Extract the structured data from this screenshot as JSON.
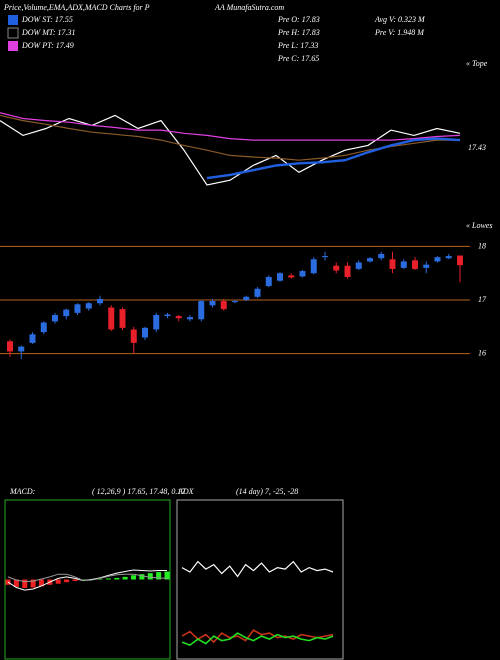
{
  "header": {
    "title": "Price,Volume,EMA,ADX,MACD Charts for P",
    "site": "AA MunafaSutra.com",
    "stats_left": [
      "Pre O: 17.83",
      "Pre H: 17.83",
      "Pre L: 17.33",
      "Pre C: 17.65"
    ],
    "stats_right": [
      "Avg V: 0.323 M",
      "Pre V: 1.948 M"
    ]
  },
  "chart_data": [
    {
      "type": "line",
      "note": "« Tope",
      "ylim": [
        16.35,
        19.1
      ],
      "end_label": 17.43,
      "series": [
        {
          "color": "#ffffff",
          "values": [
            17.95,
            17.67,
            17.8,
            17.99,
            17.86,
            18.05,
            17.8,
            17.95,
            17.39,
            16.73,
            16.82,
            17.1,
            17.29,
            16.97,
            17.2,
            17.39,
            17.48,
            17.77,
            17.67,
            17.8,
            17.71
          ]
        },
        {
          "name": "DOW MT: 17.31",
          "color": "#8a5a2a",
          "values": [
            18.05,
            17.95,
            17.88,
            17.8,
            17.73,
            17.69,
            17.65,
            17.58,
            17.48,
            17.39,
            17.29,
            17.26,
            17.24,
            17.2,
            17.24,
            17.29,
            17.39,
            17.46,
            17.52,
            17.58,
            17.58
          ]
        },
        {
          "name": "DOW PT: 17.49",
          "color": "#e040e0",
          "values": [
            18.1,
            17.99,
            17.95,
            17.92,
            17.86,
            17.82,
            17.77,
            17.77,
            17.71,
            17.67,
            17.61,
            17.58,
            17.58,
            17.58,
            17.58,
            17.58,
            17.58,
            17.58,
            17.61,
            17.65,
            17.67
          ]
        },
        {
          "name": "DOW ST: 17.55",
          "color": "#2060e0",
          "values": [
            null,
            null,
            null,
            null,
            null,
            null,
            null,
            null,
            null,
            16.86,
            16.92,
            17.01,
            17.1,
            17.14,
            17.16,
            17.2,
            17.35,
            17.48,
            17.58,
            17.61,
            17.58
          ]
        }
      ]
    },
    {
      "type": "candlestick",
      "note": "« Lowes",
      "ylim": [
        15.6,
        18.4
      ],
      "yticks": [
        16,
        17,
        18
      ],
      "grid": true,
      "grid_color": "#b4641e",
      "up_color": "#2b6de0",
      "down_color": "#e8202a",
      "open": [
        16.23,
        16.04,
        16.2,
        16.4,
        16.6,
        16.7,
        16.76,
        16.84,
        16.94,
        16.86,
        16.83,
        16.45,
        16.3,
        16.45,
        16.7,
        16.7,
        16.64,
        16.64,
        16.9,
        16.98,
        16.96,
        17.0,
        17.06,
        17.26,
        17.36,
        17.46,
        17.44,
        17.5,
        17.8,
        17.64,
        17.64,
        17.58,
        17.72,
        17.78,
        17.76,
        17.6,
        17.74,
        17.6,
        17.72,
        17.78,
        17.83
      ],
      "high": [
        16.26,
        16.15,
        16.4,
        16.6,
        16.76,
        16.84,
        16.94,
        16.96,
        17.08,
        16.9,
        16.86,
        16.5,
        16.5,
        16.76,
        16.76,
        16.72,
        16.72,
        17.0,
        17.02,
        17.02,
        17.0,
        17.08,
        17.24,
        17.46,
        17.52,
        17.5,
        17.56,
        17.8,
        17.9,
        17.7,
        17.7,
        17.74,
        17.8,
        17.9,
        17.9,
        17.76,
        17.8,
        17.72,
        17.82,
        17.86,
        17.83
      ],
      "low": [
        15.94,
        15.9,
        16.18,
        16.36,
        16.56,
        16.64,
        16.72,
        16.8,
        16.9,
        16.42,
        16.44,
        16.0,
        16.25,
        16.4,
        16.66,
        16.6,
        16.6,
        16.6,
        16.86,
        16.8,
        16.94,
        16.98,
        17.04,
        17.24,
        17.34,
        17.4,
        17.42,
        17.48,
        17.74,
        17.5,
        17.4,
        17.56,
        17.7,
        17.74,
        17.5,
        17.58,
        17.56,
        17.5,
        17.7,
        17.76,
        17.33
      ],
      "close": [
        16.04,
        16.13,
        16.36,
        16.58,
        16.72,
        16.82,
        16.92,
        16.94,
        17.02,
        16.45,
        16.48,
        16.2,
        16.48,
        16.72,
        16.73,
        16.66,
        16.68,
        16.98,
        16.98,
        16.83,
        16.98,
        17.06,
        17.21,
        17.43,
        17.5,
        17.42,
        17.54,
        17.76,
        17.82,
        17.55,
        17.43,
        17.7,
        17.78,
        17.86,
        17.58,
        17.72,
        17.58,
        17.66,
        17.8,
        17.82,
        17.65
      ]
    },
    {
      "type": "macd",
      "title": "MACD:",
      "subtitle": "( 12,26,9 ) 17.65, 17.48, 0.17",
      "ylim": [
        -1.5,
        1.5
      ],
      "frame_color": "#22aa22",
      "histogram": {
        "up_color": "#22ee22",
        "down_color": "#ee2222",
        "values": [
          -0.1,
          -0.14,
          -0.16,
          -0.15,
          -0.13,
          -0.1,
          -0.08,
          -0.05,
          -0.03,
          0,
          0.01,
          0.01,
          0.02,
          0.03,
          0.05,
          0.08,
          0.1,
          0.12,
          0.14,
          0.15
        ]
      },
      "series": [
        {
          "color": "#ffffff",
          "values": [
            -0.05,
            -0.15,
            -0.2,
            -0.18,
            -0.12,
            -0.05,
            0.02,
            0.05,
            0.02,
            -0.02,
            0,
            0.03,
            0.08,
            0.12,
            0.15,
            0.18,
            0.17,
            0.16,
            0.17,
            0.17
          ]
        },
        {
          "color": "#999999",
          "values": [
            0.05,
            -0.01,
            -0.04,
            -0.03,
            0.01,
            0.05,
            0.1,
            0.1,
            0.05,
            -0.02,
            -0.01,
            0.02,
            0.06,
            0.09,
            0.1,
            0.1,
            0.07,
            0.04,
            0.03,
            0.02
          ]
        }
      ]
    },
    {
      "type": "adx",
      "title": "ADX",
      "subtitle": "(14 day) 7, -25, -28",
      "ylim": [
        0,
        100
      ],
      "frame_color": "#aaaaaa",
      "series": [
        {
          "color": "#ffffff",
          "values": [
            58,
            55,
            62,
            57,
            60,
            54,
            59,
            52,
            60,
            56,
            61,
            55,
            58,
            57,
            62,
            55,
            58,
            56,
            57,
            55
          ]
        },
        {
          "color": "#c83218",
          "values": [
            12,
            15,
            10,
            13,
            8,
            14,
            11,
            12,
            9,
            16,
            13,
            14,
            11,
            12,
            10,
            13,
            12,
            11,
            12,
            13
          ]
        },
        {
          "color": "#22dd22",
          "values": [
            8,
            6,
            10,
            7,
            12,
            9,
            10,
            14,
            11,
            9,
            12,
            10,
            13,
            11,
            12,
            10,
            9,
            11,
            10,
            12
          ]
        }
      ]
    }
  ]
}
